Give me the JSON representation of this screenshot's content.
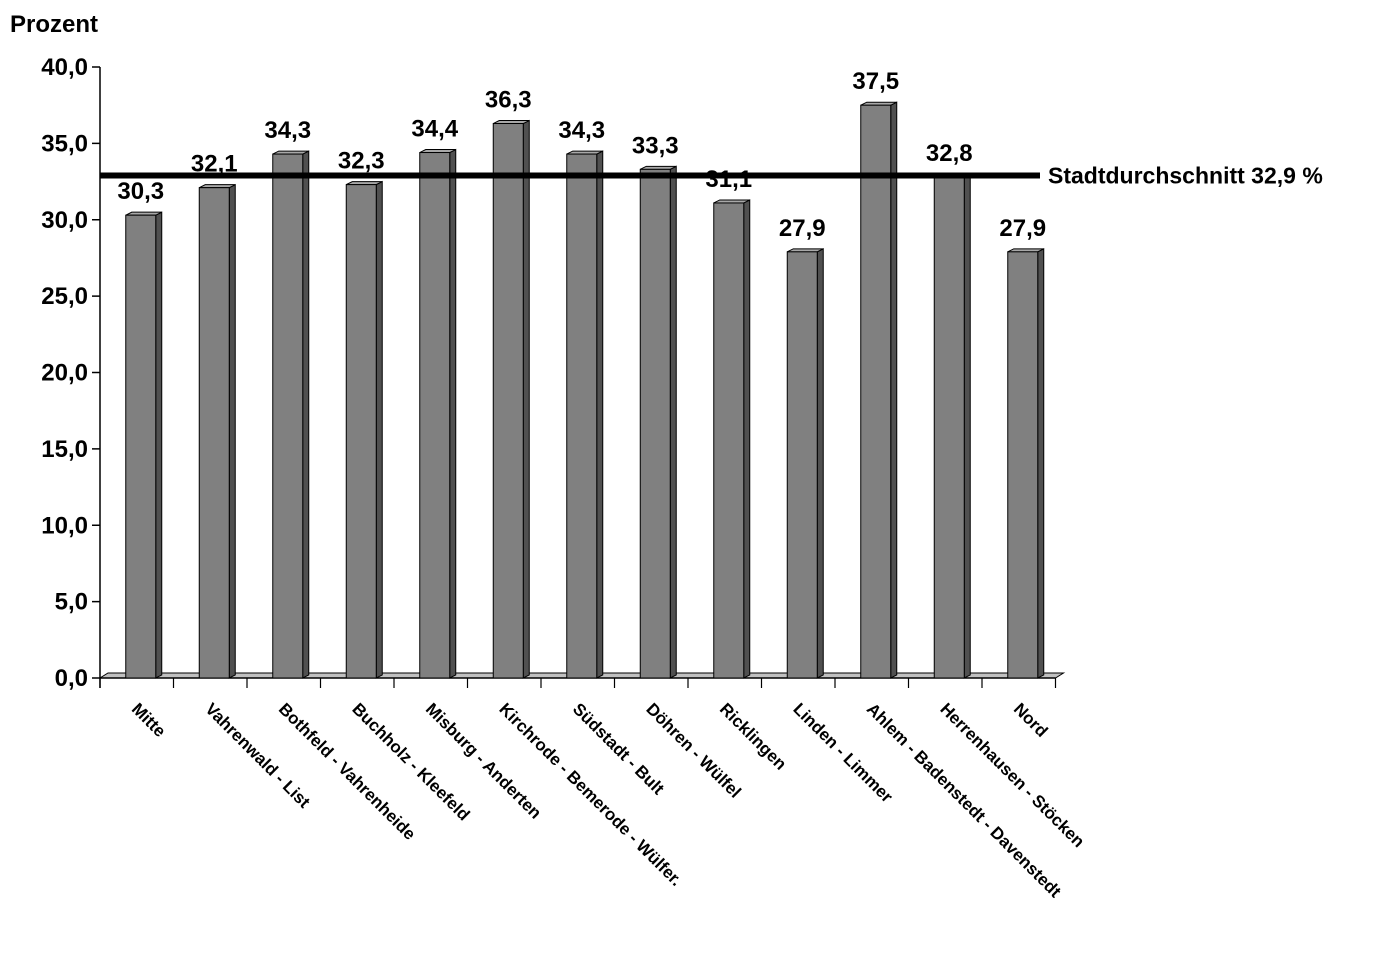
{
  "chart_data": {
    "type": "bar",
    "ylabel": "Prozent",
    "xlabel": "",
    "title": "",
    "ylim": [
      0,
      40
    ],
    "yticks": [
      "0,0",
      "5,0",
      "10,0",
      "15,0",
      "20,0",
      "25,0",
      "30,0",
      "35,0",
      "40,0"
    ],
    "categories": [
      "Mitte",
      "Vahrenwald - List",
      "Bothfeld - Vahrenheide",
      "Buchholz - Kleefeld",
      "Misburg - Anderten",
      "Kirchrode - Bemerode - Wülfer.",
      "Südstadt - Bult",
      "Döhren - Wülfel",
      "Ricklingen",
      "Linden - Limmer",
      "Ahlem - Badenstedt - Davenstedt",
      "Herrenhausen - Stöcken",
      "Nord"
    ],
    "values": [
      30.3,
      32.1,
      34.3,
      32.3,
      34.4,
      36.3,
      34.3,
      33.3,
      31.1,
      27.9,
      37.5,
      32.8,
      27.9
    ],
    "value_labels": [
      "30,3",
      "32,1",
      "34,3",
      "32,3",
      "34,4",
      "36,3",
      "34,3",
      "33,3",
      "31,1",
      "27,9",
      "37,5",
      "32,8",
      "27,9"
    ],
    "reference_line": {
      "value": 32.9,
      "label": "Stadtdurchschnitt 32,9 %"
    },
    "grid": false,
    "colors": {
      "bar_front": "#808080",
      "bar_side": "#505050",
      "bar_top": "#a8a8a8",
      "reference_line": "#000000",
      "floor": "#c0c0c0"
    }
  }
}
